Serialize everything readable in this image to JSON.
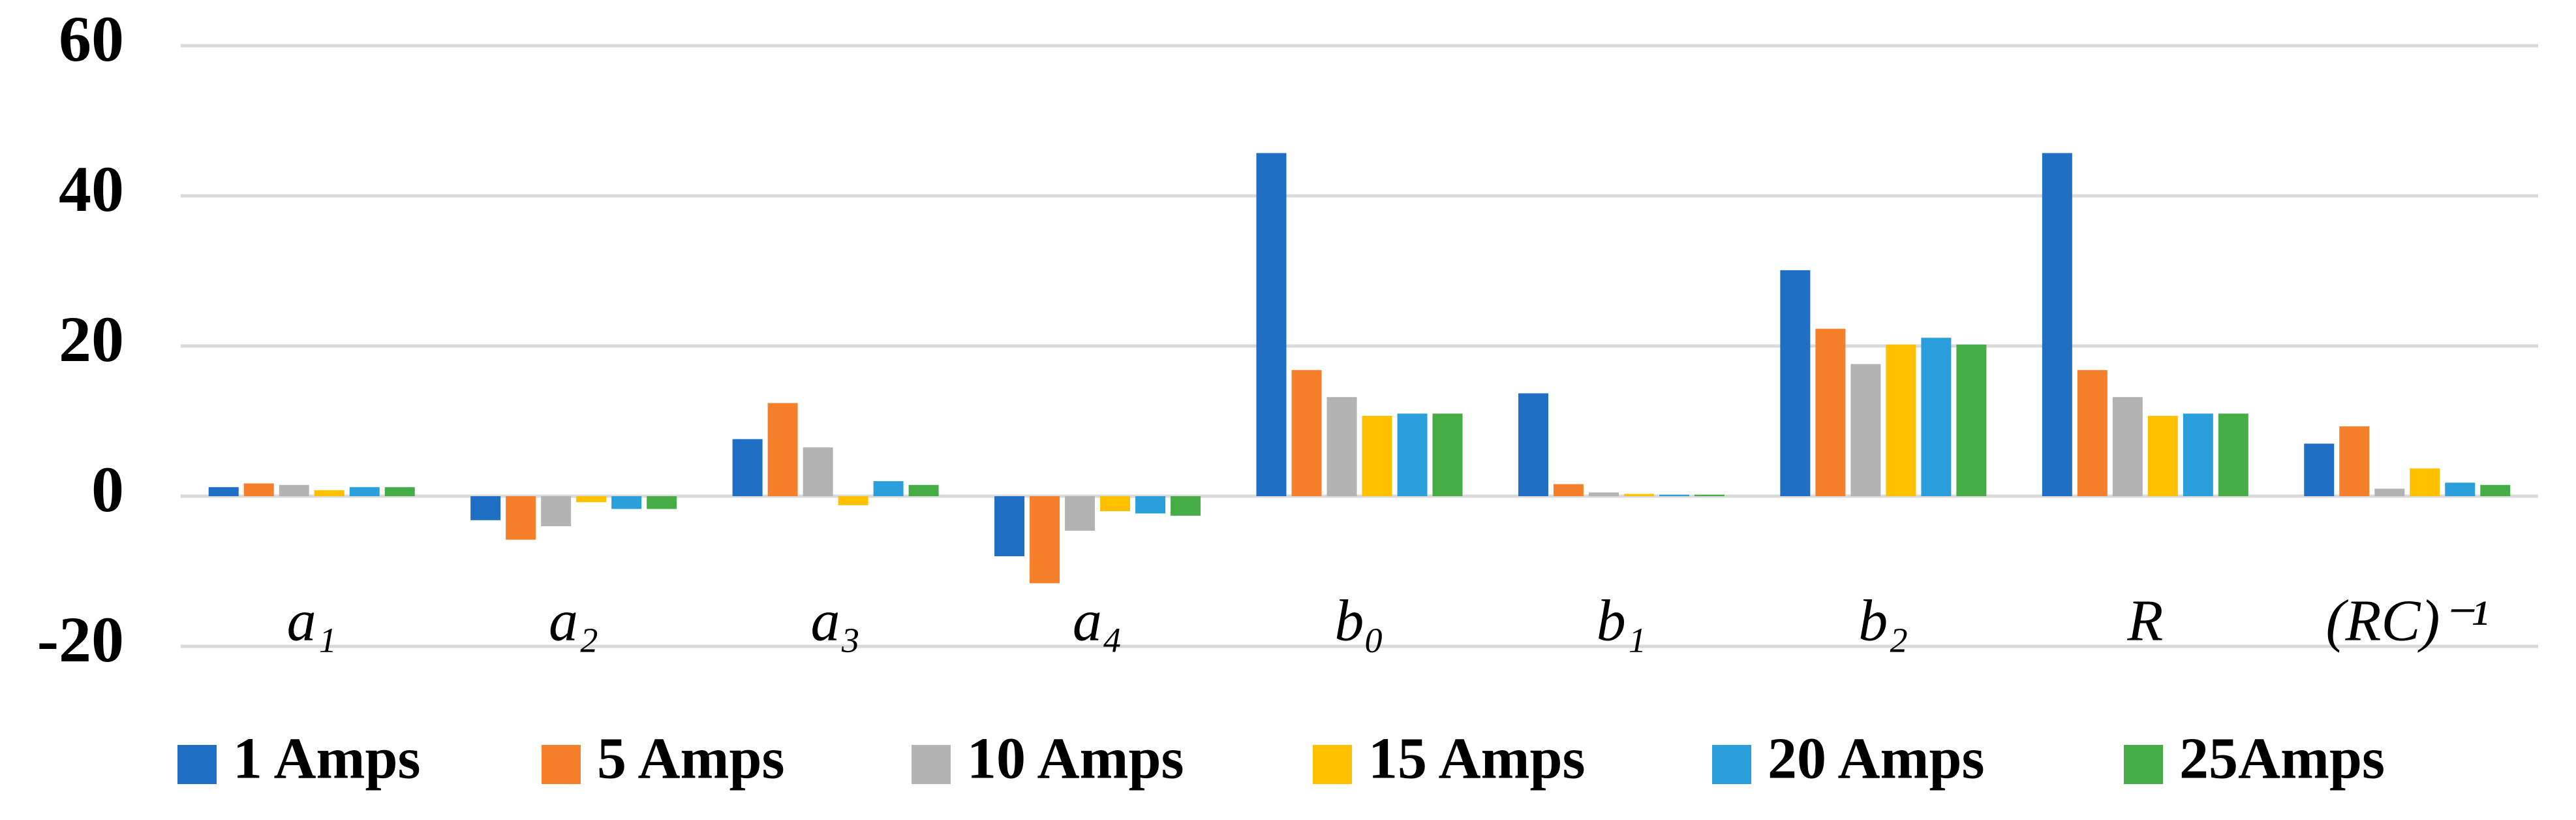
{
  "chart_data": {
    "type": "bar",
    "categories": [
      "a₁",
      "a₂",
      "a₃",
      "a₄",
      "b₀",
      "b₁",
      "b₂",
      "R",
      "(RC)⁻¹"
    ],
    "series": [
      {
        "name": "1 Amps",
        "color": "#1f6fc5",
        "values": [
          1.2,
          -3.2,
          7.6,
          -8,
          45.7,
          13.7,
          30.1,
          45.7,
          7
        ]
      },
      {
        "name": "5 Amps",
        "color": "#f57f2a",
        "values": [
          1.7,
          -5.8,
          12.4,
          -11.6,
          16.8,
          1.6,
          22.3,
          16.8,
          9.3
        ]
      },
      {
        "name": "10 Amps",
        "color": "#b3b3b3",
        "values": [
          1.5,
          -4,
          6.5,
          -4.6,
          13.2,
          0.5,
          17.6,
          13.2,
          1
        ]
      },
      {
        "name": "15 Amps",
        "color": "#ffc000",
        "values": [
          0.8,
          -0.8,
          -1.2,
          -2,
          10.7,
          0.3,
          20.2,
          10.7,
          3.7
        ]
      },
      {
        "name": "20 Amps",
        "color": "#2a9fdb",
        "values": [
          1.2,
          -1.7,
          2,
          -2.3,
          11,
          0.2,
          21.1,
          11,
          1.8
        ]
      },
      {
        "name": "25Amps",
        "color": "#46ad46",
        "values": [
          1.2,
          -1.7,
          1.5,
          -2.6,
          11,
          0.2,
          20.2,
          11,
          1.5
        ]
      }
    ],
    "ylim": [
      -20,
      60
    ],
    "yticks": [
      -20,
      0,
      20,
      40,
      60
    ],
    "grid": true,
    "legend": "bottom"
  }
}
